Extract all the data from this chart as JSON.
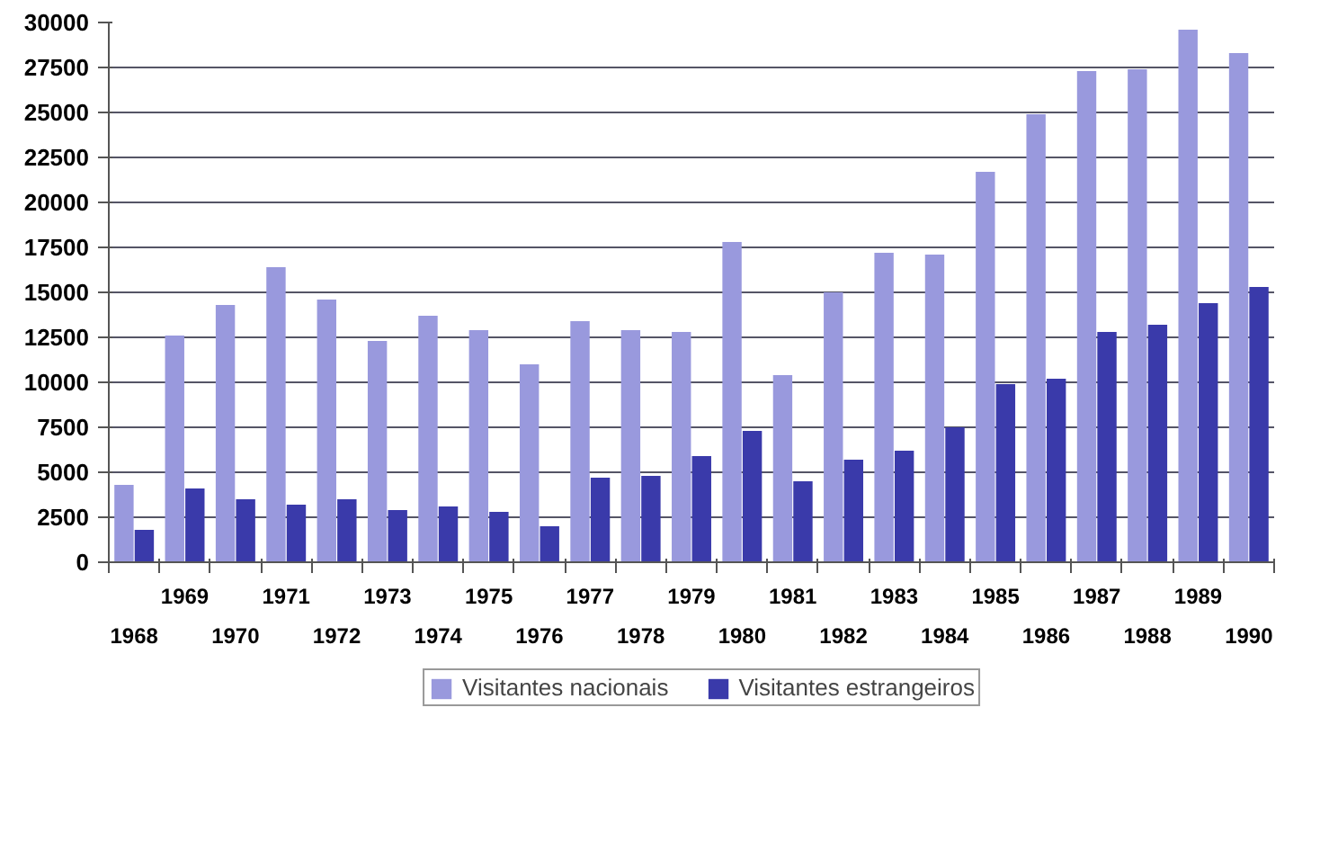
{
  "chart_data": {
    "type": "bar",
    "categories": [
      "1968",
      "1969",
      "1970",
      "1971",
      "1972",
      "1973",
      "1974",
      "1975",
      "1976",
      "1977",
      "1978",
      "1979",
      "1980",
      "1981",
      "1982",
      "1983",
      "1984",
      "1985",
      "1986",
      "1987",
      "1988",
      "1989",
      "1990"
    ],
    "series": [
      {
        "name": "Visitantes nacionais",
        "color": "#9999dd",
        "values": [
          4300,
          12600,
          14300,
          16400,
          14600,
          12300,
          13700,
          12900,
          11000,
          13400,
          12900,
          12800,
          17800,
          10400,
          15000,
          17200,
          17100,
          21700,
          24900,
          27300,
          27400,
          29600,
          28300
        ]
      },
      {
        "name": "Visitantes estrangeiros",
        "color": "#3a3aaa",
        "values": [
          1800,
          4100,
          3500,
          3200,
          3500,
          2900,
          3100,
          2800,
          2000,
          4700,
          4800,
          5900,
          7300,
          4500,
          5700,
          6200,
          7500,
          9900,
          10200,
          12800,
          13200,
          14400,
          15300
        ]
      }
    ],
    "ylim": [
      0,
      30000
    ],
    "yticks": [
      0,
      2500,
      5000,
      7500,
      10000,
      12500,
      15000,
      17500,
      20000,
      22500,
      25000,
      27500,
      30000
    ],
    "grid": "y",
    "legend": "bottom"
  }
}
